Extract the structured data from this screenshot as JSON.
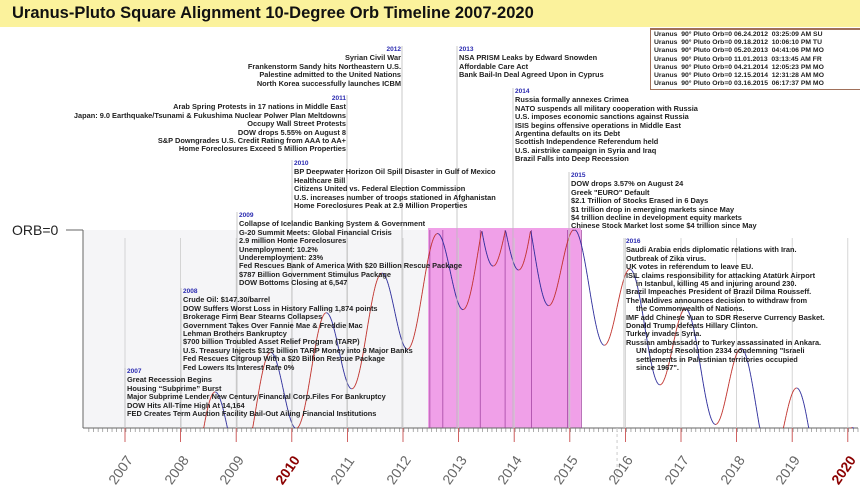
{
  "title": "Uranus-Pluto Square Alignment 10-Degree Orb Timeline 2007-2020",
  "hits_table": [
    "Uranus  90° Pluto Orb=0 06.24.2012  03:25:09 AM SU",
    "Uranus  90° Pluto Orb=0 09.18.2012  10:06:10 PM TU",
    "Uranus  90° Pluto Orb=0 05.20.2013  04:41:06 PM MO",
    "Uranus  90° Pluto Orb=0 11.01.2013  03:13:45 AM FR",
    "Uranus  90° Pluto Orb=0 04.21.2014  12:05:23 PM MO",
    "Uranus  90° Pluto Orb=0 12.15.2014  12:31:28 AM MO",
    "Uranus  90° Pluto Orb=0 03.16.2015  06:17:37 PM MO"
  ],
  "events": {
    "2007": [
      "Great Recession Begins",
      "Housing “Subprime” Burst",
      "Major Subprime Lender New Century Financial Corp.Files For Bankruptcy",
      "DOW Hits All-Time High At 14,164",
      "FED Creates Term Auction Facility Bail-Out Ailing Financial Institutions"
    ],
    "2008": [
      "Crude Oil: $147.30/barrel",
      "DOW Suffers Worst Loss in History Falling 1,874 points",
      "Brokerage Firm Bear Stearns Collapses",
      "Government Takes Over Fannie Mae & Freddie Mac",
      "Lehman Brothers Bankruptcy",
      "$700 billion Troubled Asset Relief Program (TARP)",
      "U.S. Treasury Injects $125 billion TARP Money into 9 Major Banks",
      "Fed Rescues Citgroup With a $20 Billion Rescue Package",
      "Fed Lowers Its Interest Rate 0%"
    ],
    "2009": [
      "Collapse of  Icelandic Banking System & Government",
      "G-20 Summit Meets: Global Financial Crisis",
      "2.9 million Home Foreclosures",
      "Unemployment: 10.2%",
      "Underemployment: 23%",
      "Fed Rescues Bank of America With $20 Billion Rescue Package",
      "$787 Billion Government Stimulus Package",
      "DOW Bottoms Closing at 6,547"
    ],
    "2010": [
      "BP Deepwater Horizon Oil Spill Disaster in Gulf of Mexico",
      "Healthcare Bill",
      "Citizens United vs. Federal Election Commission",
      "U.S. increases number of troops stationed in Afghanistan",
      "Home Foreclosures Peak at 2.9 Million Properties"
    ],
    "2011": [
      "Arab Spring Protests in 17 nations in Middle East",
      "Japan: 9.0 Earthquake/Tsunami & Fukushima Nuclear Polwer Plan Meltdowns",
      "Occupy Wall Street Protests",
      "DOW drops 5.55% on August 8",
      "S&P Downgrades U.S. Credit Rating from AAA to AA+",
      "Home Foreclosures Exceed 5 Million Properties"
    ],
    "2012": [
      "Syrian Civil War",
      "Frankenstorm Sandy hits Northeastern U.S.",
      "Palestine admitted to the United Nations",
      "North Korea successfully launches ICBM"
    ],
    "2013": [
      "NSA PRISM Leaks by Edward Snowden",
      "Affordable Care Act",
      "Bank Bail-In Deal Agreed Upon in Cyprus"
    ],
    "2014": [
      "Russia formally annexes Crimea",
      "NATO suspends all military cooperation with Russia",
      "U.S. imposes economic sanctions against Russia",
      "ISIS begins offensive operations in Middle East",
      "Argentina defaults on its Debt",
      "Scottish Independence Referendum held",
      "U.S. airstrike campaign in Syria and Iraq",
      "Brazil Falls into Deep Recession"
    ],
    "2015": [
      "DOW drops 3.57% on August 24",
      "Greek \"EURO\" Default",
      "$2.1 Trillion of Stocks Erased in 6 Days",
      "$1 trillion drop in emerging markets since May",
      "$4 trillion decline in development equity markets",
      "Chinese Stock Market lost some $4 trillion since May"
    ],
    "2016": [
      "Saudi Arabia ends diplomatic relations with Iran.",
      "Outbreak of Zika virus.",
      "UK votes in referendum to leave EU.",
      "ISIL claims responsibility for attacking Atatürk Airport",
      "in Istanbul, killing 45 and injuring around 230.",
      "Brazil Impeaches President of Brazil Dilma Rousseff.",
      "The Maldives announces decision to withdraw from",
      "the Commonwealth of Nations.",
      "IMF add Chinese Yuan to SDR Reserve Currency Basket.",
      "Donald Trump defeats Hillary Clinton.",
      "Turkey invades Syria.",
      "Russian ambassador to Turkey assassinated in Ankara.",
      "UN adopts Resolution 2334 condemning \"Israeli",
      "settlements in Palestinian territories occupied",
      "since 1967\"."
    ]
  },
  "chart_data": {
    "type": "line",
    "title": "Uranus-Pluto Square Alignment 10-Degree Orb Timeline 2007-2020",
    "ylabel": "ORB=0",
    "ylim": [
      10,
      0
    ],
    "xlim": [
      2006.3,
      2020.2
    ],
    "x_ticks": [
      "2007",
      "2008",
      "2009",
      "2010",
      "2011",
      "2012",
      "2013",
      "2014",
      "2015",
      "2016",
      "2017",
      "2018",
      "2019",
      "2020"
    ],
    "highlight_ticks": [
      "2010",
      "2020"
    ],
    "exact_hits": [
      "2012-06-24",
      "2012-09-18",
      "2013-05-20",
      "2013-11-01",
      "2014-04-21",
      "2014-12-15",
      "2015-03-16"
    ],
    "shaded_period": [
      2012.45,
      2015.2
    ],
    "colors": {
      "applying": "#c0302a",
      "separating": "#2a2a9a",
      "shade": "#f0a0e8",
      "highlight_year": "#8b0000"
    }
  }
}
